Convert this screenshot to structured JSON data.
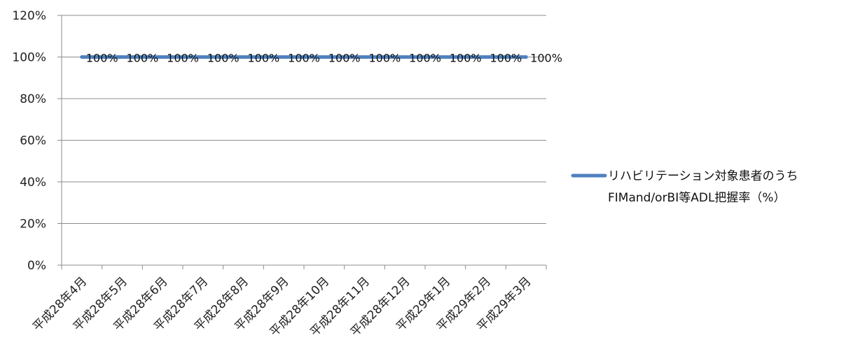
{
  "chart_data": {
    "type": "line",
    "categories": [
      "平成28年4月",
      "平成28年5月",
      "平成28年6月",
      "平成28年7月",
      "平成28年8月",
      "平成28年9月",
      "平成28年10月",
      "平成28年11月",
      "平成28年12月",
      "平成29年1月",
      "平成29年2月",
      "平成29年3月"
    ],
    "series": [
      {
        "name": "リハビリテーション対象患者のうちFIMand/orBI等ADL把握率（%）",
        "name_lines": [
          "リハビリテーション対象患者のうち",
          "FIMand/orBI等ADL把握率（%）"
        ],
        "values": [
          100,
          100,
          100,
          100,
          100,
          100,
          100,
          100,
          100,
          100,
          100,
          100
        ],
        "data_labels": [
          "100%",
          "100%",
          "100%",
          "100%",
          "100%",
          "100%",
          "100%",
          "100%",
          "100%",
          "100%",
          "100%",
          "100%"
        ],
        "color": "#4f81bd"
      }
    ],
    "yticks": [
      0,
      20,
      40,
      60,
      80,
      100,
      120
    ],
    "ytick_labels": [
      "0%",
      "20%",
      "40%",
      "60%",
      "80%",
      "100%",
      "120%"
    ],
    "ylim": [
      0,
      120
    ],
    "title": "",
    "xlabel": "",
    "ylabel": "",
    "grid": true,
    "legend_position": "right"
  }
}
